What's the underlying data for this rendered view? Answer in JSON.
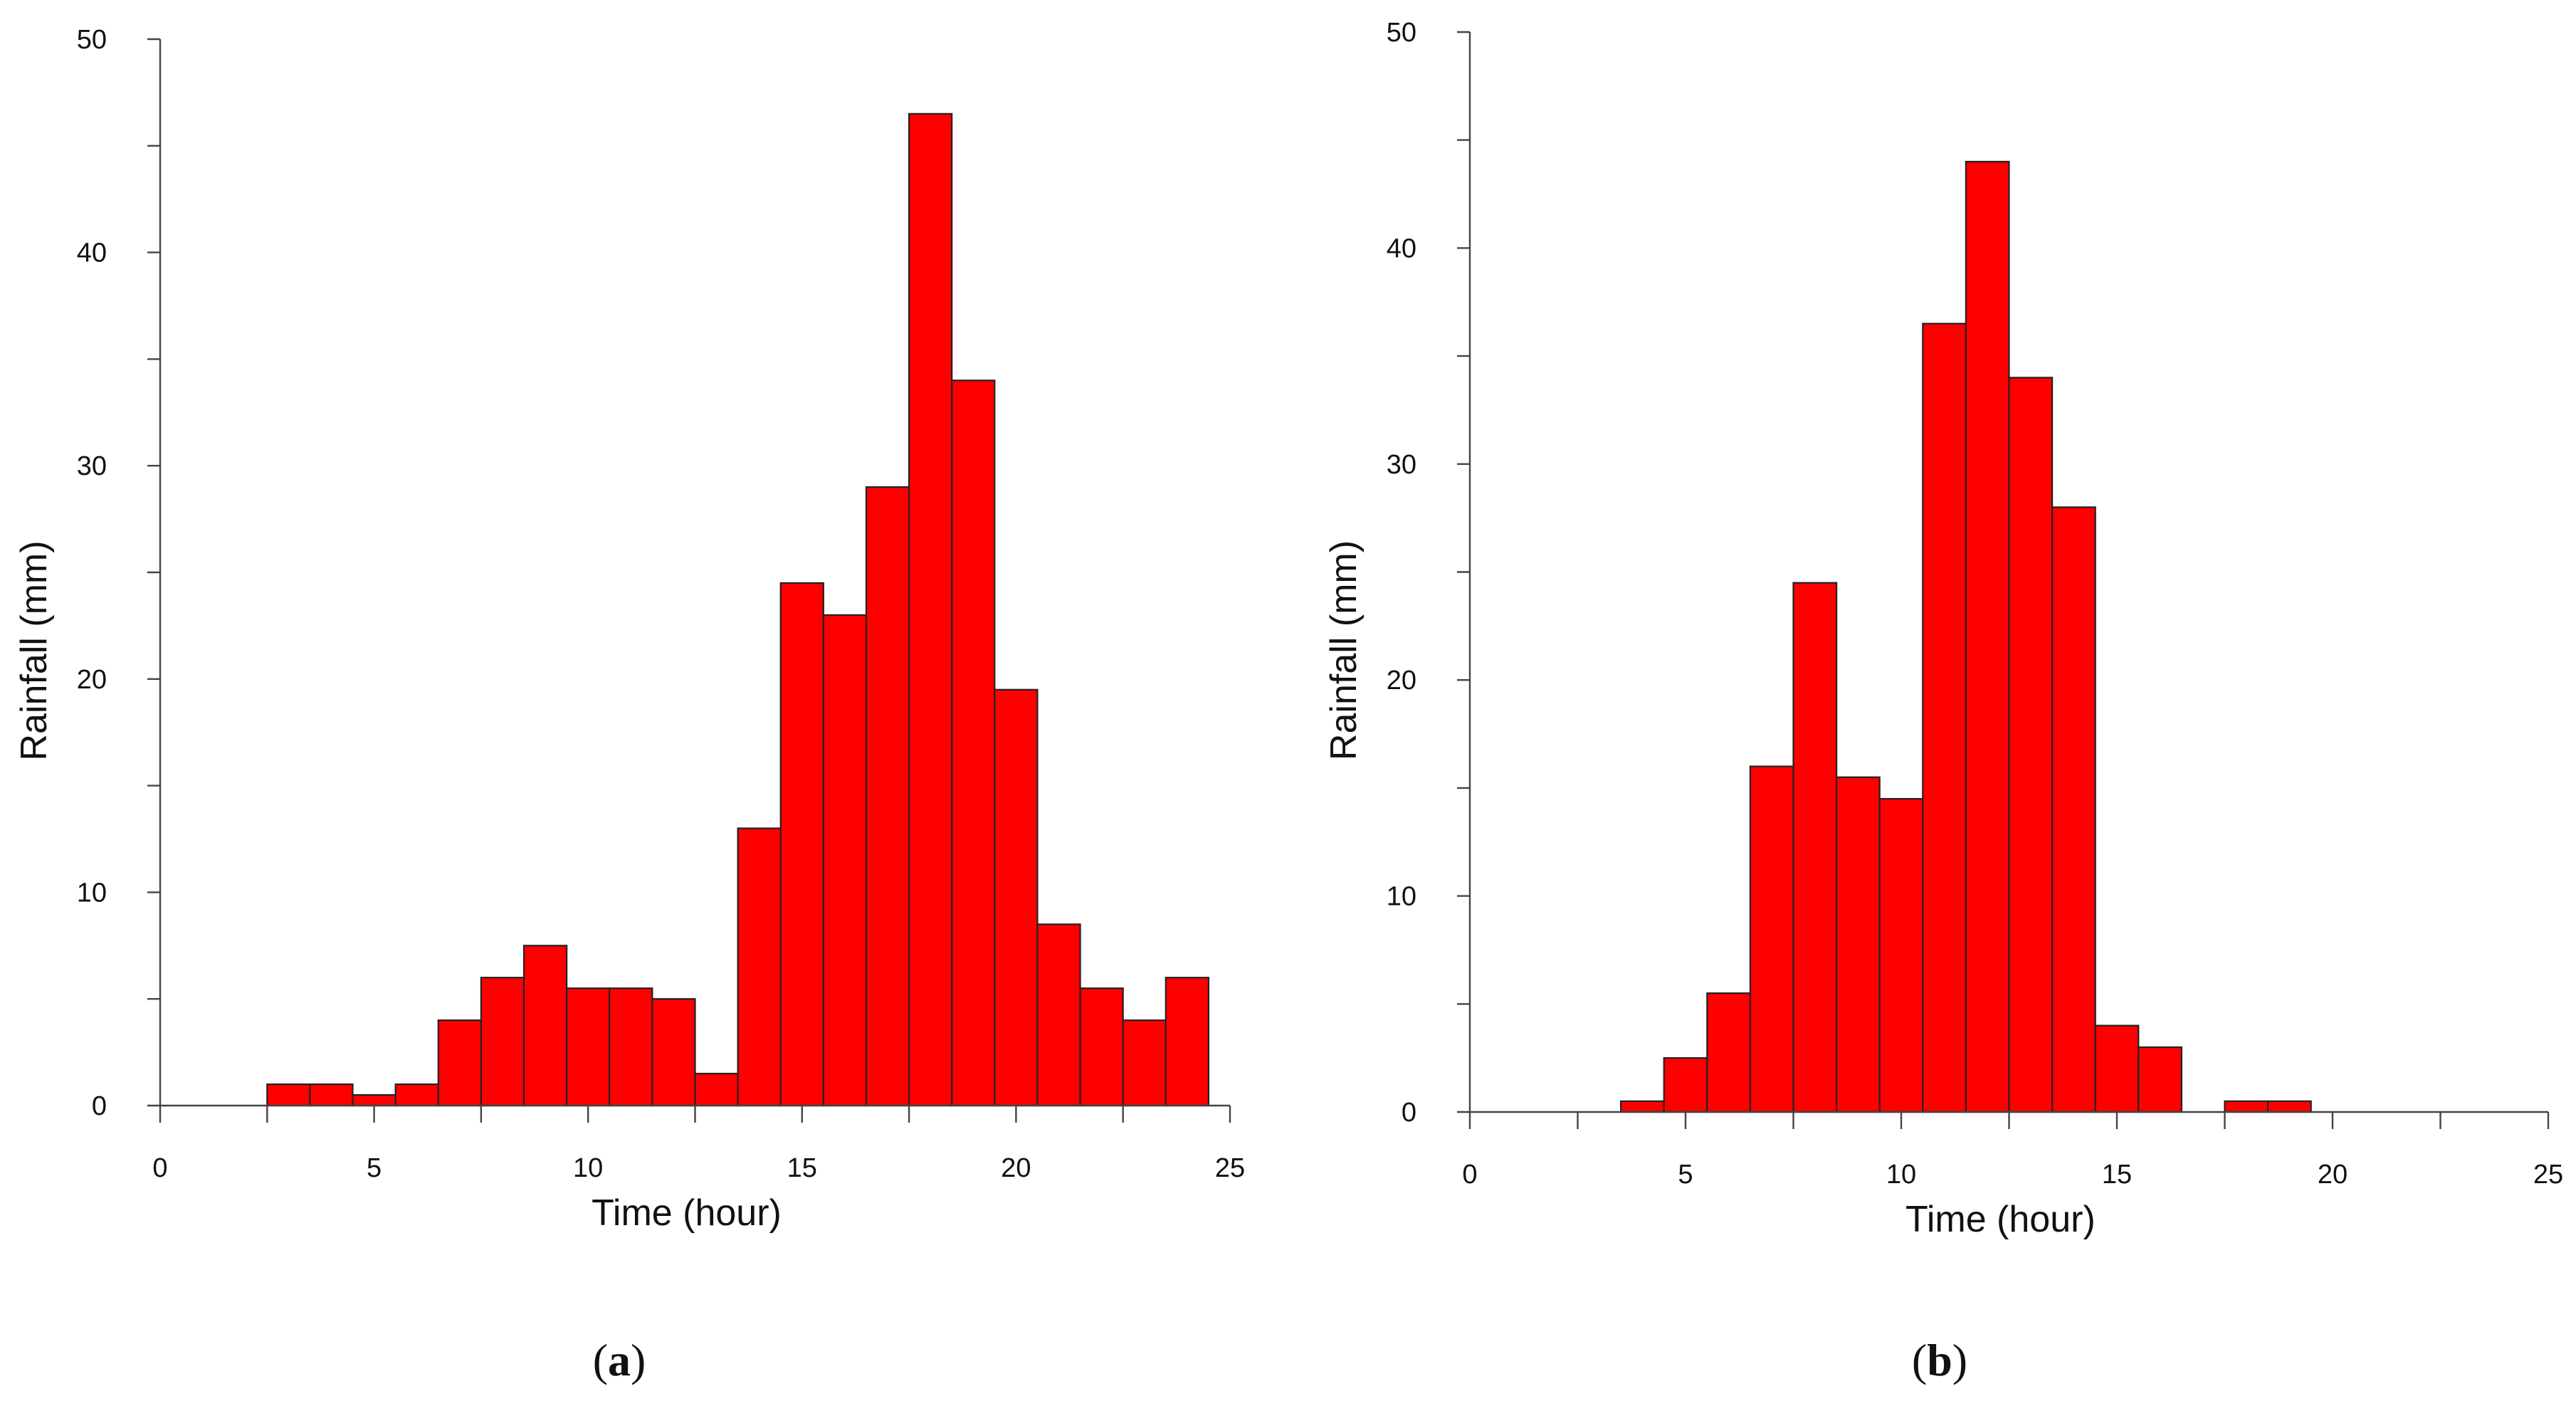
{
  "colors": {
    "bar_fill": "#ff0000",
    "bar_stroke": "#222222",
    "axis": "#444444"
  },
  "chart_data": [
    {
      "type": "bar",
      "panel_label": {
        "open": "(",
        "letter": "a",
        "close": ")"
      },
      "xlabel": "Time (hour)",
      "ylabel": "Rainfall (mm)",
      "xlim": [
        0,
        25
      ],
      "ylim": [
        0,
        50
      ],
      "xticks": [
        0,
        5,
        10,
        15,
        20,
        25
      ],
      "yticks": [
        0,
        10,
        20,
        30,
        40,
        50
      ],
      "x": [
        3,
        4,
        5,
        6,
        7,
        8,
        9,
        10,
        11,
        12,
        13,
        14,
        15,
        16,
        17,
        18,
        19,
        20,
        21,
        22,
        23,
        24
      ],
      "values": [
        1,
        1,
        0.5,
        1,
        4,
        6,
        7.5,
        5.5,
        5.5,
        5,
        1.5,
        13,
        24.5,
        23,
        29,
        46.5,
        34,
        19.5,
        8.5,
        5.5,
        4,
        6
      ]
    },
    {
      "type": "bar",
      "panel_label": {
        "open": "(",
        "letter": "b",
        "close": ")"
      },
      "xlabel": "Time (hour)",
      "ylabel": "Rainfall (mm)",
      "xlim": [
        0,
        25
      ],
      "ylim": [
        0,
        50
      ],
      "xticks": [
        0,
        5,
        10,
        15,
        20,
        25
      ],
      "yticks": [
        0,
        10,
        20,
        30,
        40,
        50
      ],
      "x": [
        4,
        5,
        6,
        7,
        8,
        9,
        10,
        11,
        12,
        13,
        14,
        15,
        16,
        18,
        19
      ],
      "values": [
        0.5,
        2.5,
        5.5,
        16,
        24.5,
        15.5,
        14.5,
        36.5,
        44,
        34,
        28,
        4,
        3,
        0.5,
        0.5
      ]
    }
  ]
}
